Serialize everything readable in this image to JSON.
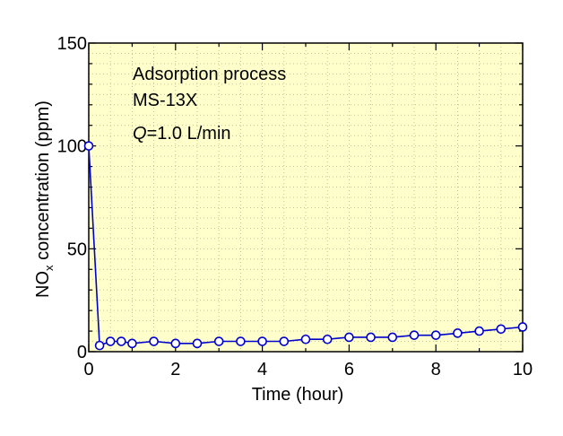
{
  "chart_data": {
    "type": "line",
    "title": "",
    "xlabel": "Time (hour)",
    "ylabel": {
      "prefix": "NO",
      "subscript": "x",
      "suffix": " concentration  (ppm)"
    },
    "xlim": [
      0,
      10
    ],
    "ylim": [
      0,
      150
    ],
    "xticks": [
      "0",
      "2",
      "4",
      "6",
      "8",
      "10"
    ],
    "yticks": [
      "0",
      "50",
      "100",
      "150"
    ],
    "grid": true,
    "legend": "none",
    "annotations": {
      "line1": "Adsorption process",
      "line2": "MS-13X",
      "line3_italic": "Q",
      "line3_rest": "=1.0 L/min"
    },
    "series": [
      {
        "color": "#0000cc",
        "marker": "open-circle",
        "x": [
          0,
          0.25,
          0.5,
          0.75,
          1.0,
          1.5,
          2.0,
          2.5,
          3.0,
          3.5,
          4.0,
          4.5,
          5.0,
          5.5,
          6.0,
          6.5,
          7.0,
          7.5,
          8.0,
          8.5,
          9.0,
          9.5,
          10.0
        ],
        "y": [
          100,
          3,
          5,
          5,
          4,
          5,
          4,
          4,
          5,
          5,
          5,
          5,
          6,
          6,
          7,
          7,
          7,
          8,
          8,
          9,
          10,
          11,
          12
        ]
      }
    ]
  }
}
